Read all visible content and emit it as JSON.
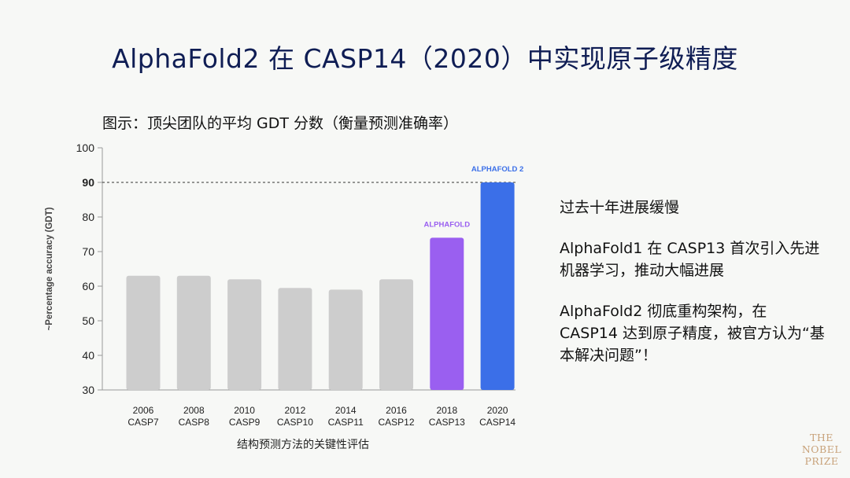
{
  "title": "AlphaFold2 在 CASP14（2020）中实现原子级精度",
  "subtitle": "图示：顶尖团队的平均 GDT 分数（衡量预测准确率）",
  "notes": [
    "过去十年进展缓慢",
    "AlphaFold1 在 CASP13 首次引入先进机器学习，推动大幅进展",
    "AlphaFold2 彻底重构架构，在 CASP14 达到原子精度，被官方认为“基本解决问题”！"
  ],
  "brand": [
    "THE",
    "NOBEL",
    "PRIZE"
  ],
  "colors": {
    "gray_bar": "#cdcdcd",
    "alphafold": "#9a5ff0",
    "alphafold2": "#3b6fe8",
    "title": "#0f1d54",
    "brand": "#c8a27a"
  },
  "chart_data": {
    "type": "bar",
    "xlabel": "结构预测方法的关键性评估",
    "ylabel": "~Percentage accuracy (GDT)",
    "ylim": [
      30,
      100
    ],
    "yticks": [
      30,
      40,
      50,
      60,
      70,
      80,
      90,
      100
    ],
    "bold_tick": 90,
    "reference_line": 90,
    "categories": [
      [
        "2006",
        "CASP7"
      ],
      [
        "2008",
        "CASP8"
      ],
      [
        "2010",
        "CASP9"
      ],
      [
        "2012",
        "CASP10"
      ],
      [
        "2014",
        "CASP11"
      ],
      [
        "2016",
        "CASP12"
      ],
      [
        "2018",
        "CASP13"
      ],
      [
        "2020",
        "CASP14"
      ]
    ],
    "values": [
      63,
      63,
      62,
      59.5,
      59,
      62,
      74,
      90
    ],
    "bar_colors": [
      "gray_bar",
      "gray_bar",
      "gray_bar",
      "gray_bar",
      "gray_bar",
      "gray_bar",
      "alphafold",
      "alphafold2"
    ],
    "bar_labels": [
      "",
      "",
      "",
      "",
      "",
      "",
      "ALPHAFOLD",
      "ALPHAFOLD 2"
    ],
    "grid": false
  }
}
